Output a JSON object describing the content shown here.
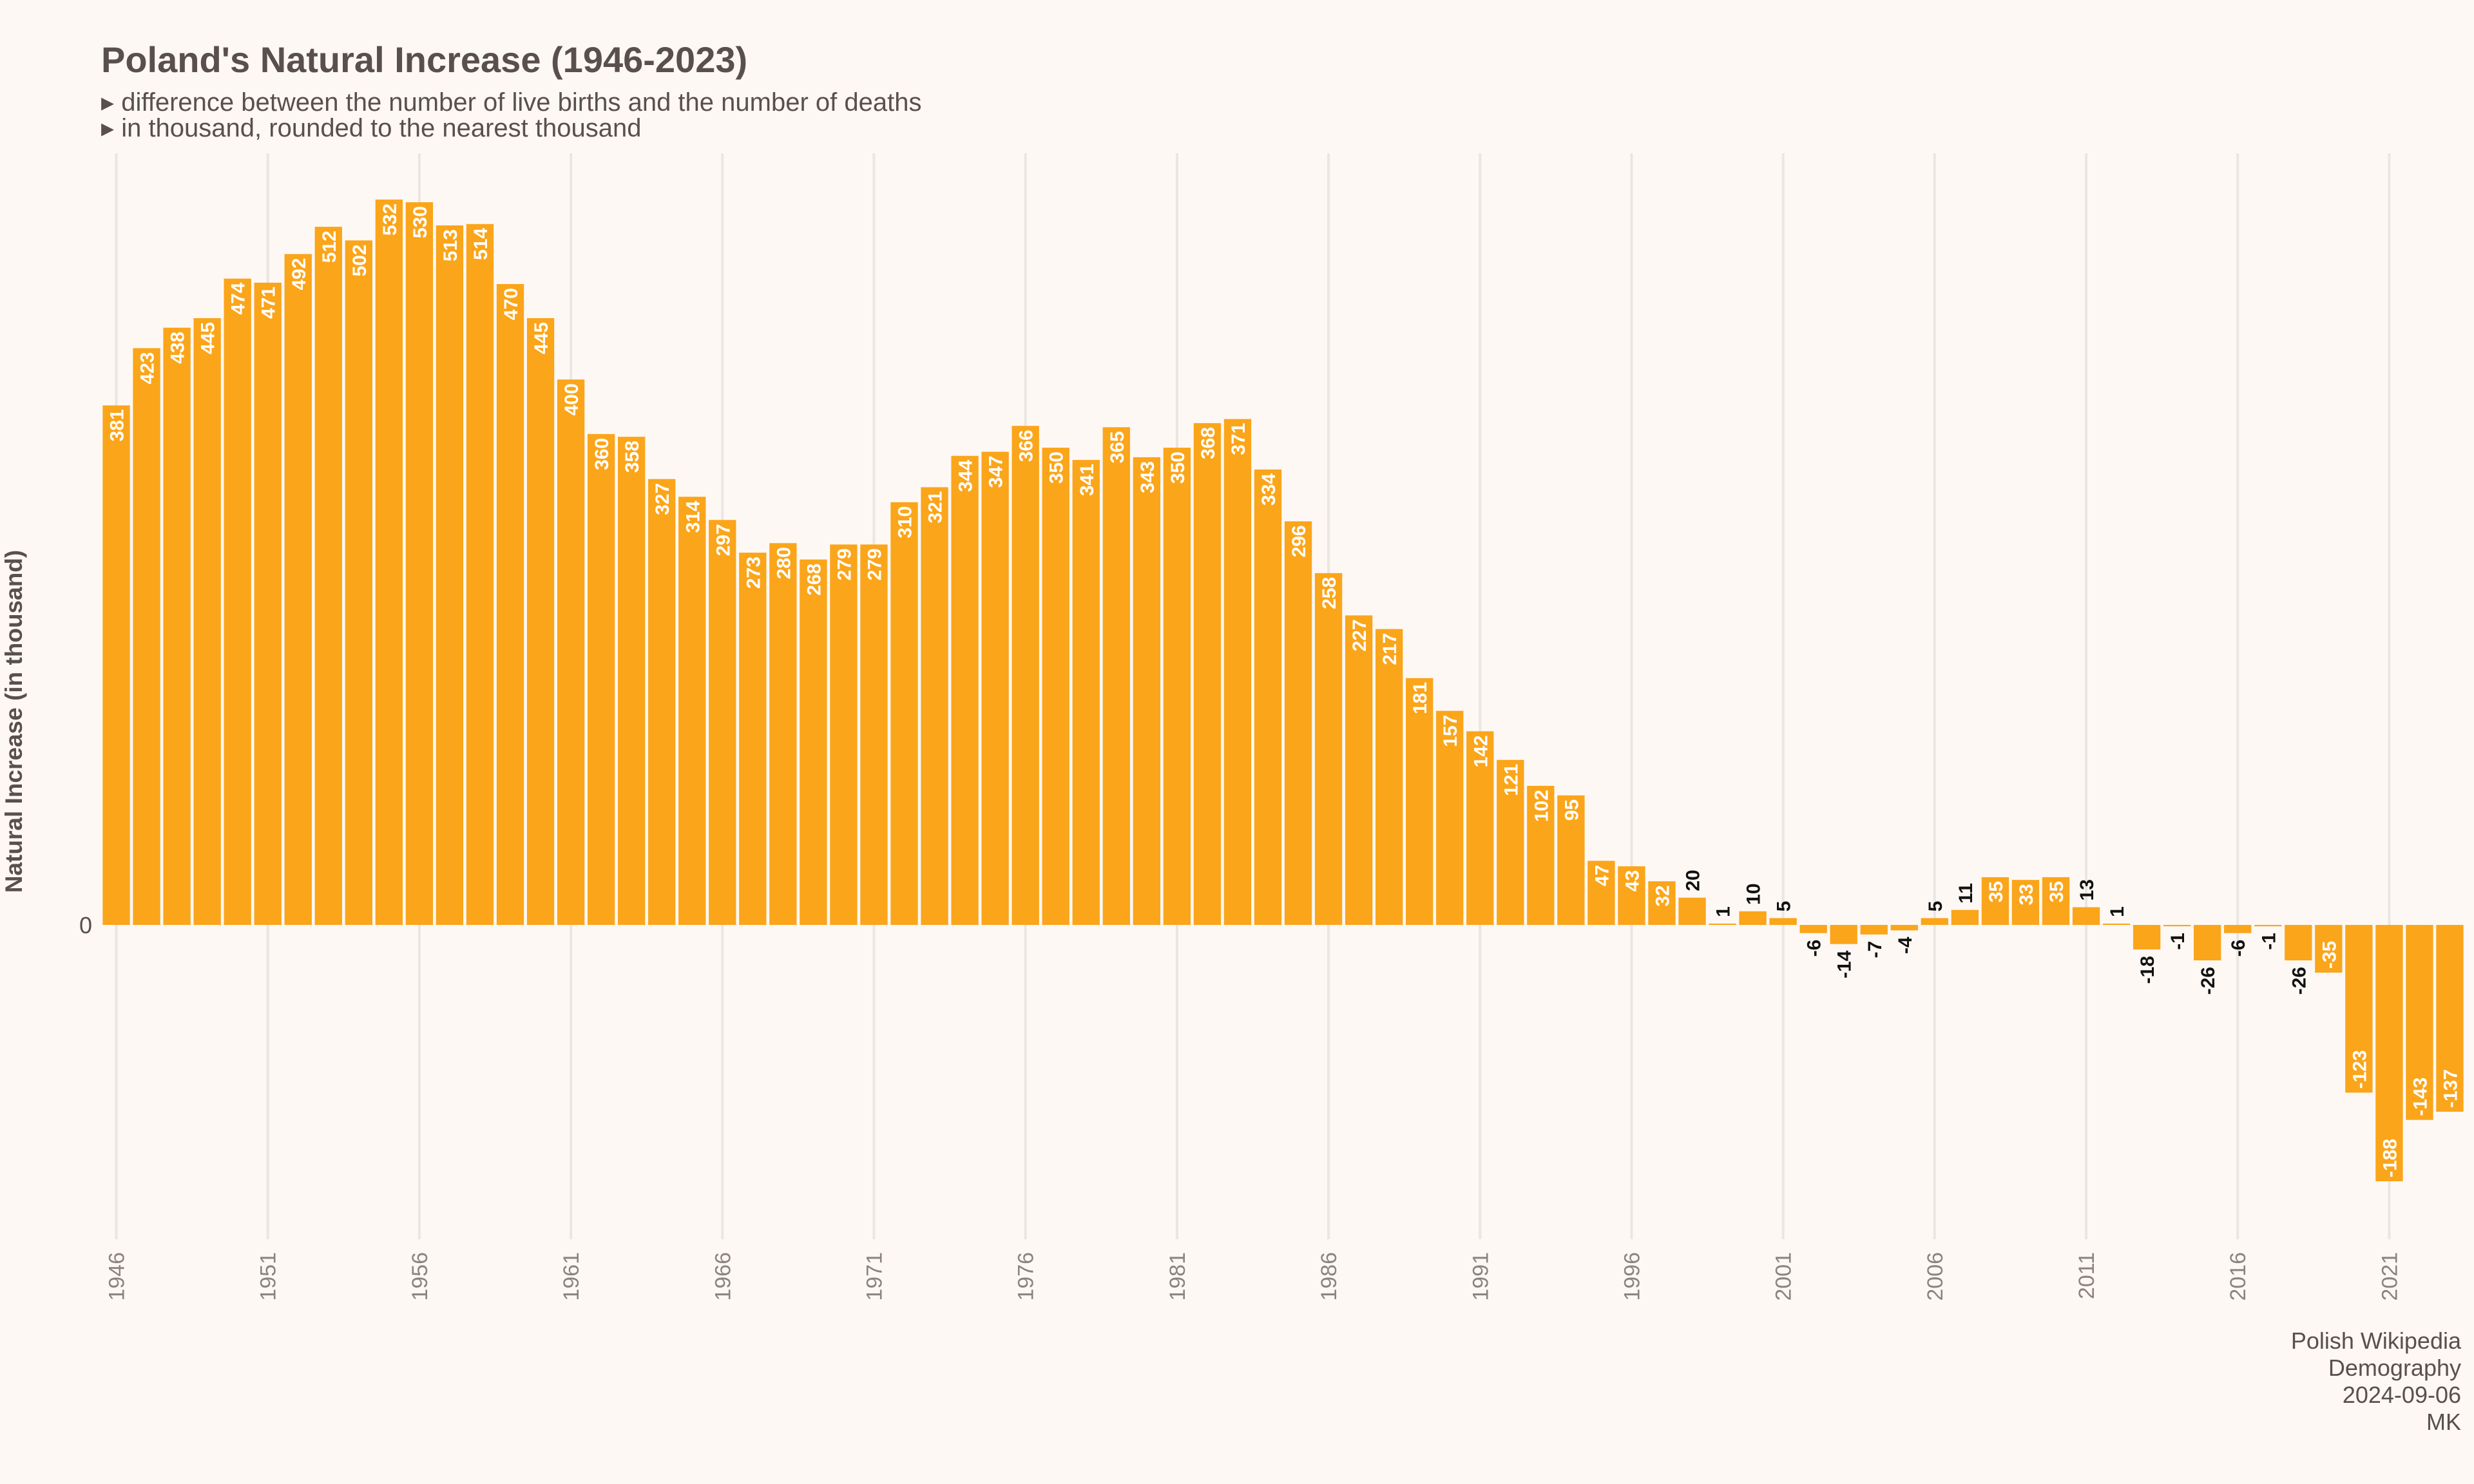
{
  "header": {
    "title": "Poland's Natural Increase (1946-2023)",
    "subtitle_lines": [
      "▸ difference between the number of live births and the number of deaths",
      "▸ in thousand, rounded to the nearest thousand"
    ]
  },
  "footer": {
    "lines": [
      "Polish Wikipedia",
      "Demography",
      "2024-09-06",
      "MK"
    ]
  },
  "colors": {
    "background": "#fdf8f4",
    "bar": "#fba51a",
    "bar_label_inside": "#ffffff",
    "bar_label_outside": "#111111",
    "grid": "#ebe6e1",
    "title": "#5a504b",
    "tick": "#8a8380"
  },
  "chart_data": {
    "type": "bar",
    "title": "Poland's Natural Increase (1946-2023)",
    "ylabel": "Natural Increase (in thousand)",
    "xlabel": "",
    "x": [
      1946,
      1947,
      1948,
      1949,
      1950,
      1951,
      1952,
      1953,
      1954,
      1955,
      1956,
      1957,
      1958,
      1959,
      1960,
      1961,
      1962,
      1963,
      1964,
      1965,
      1966,
      1967,
      1968,
      1969,
      1970,
      1971,
      1972,
      1973,
      1974,
      1975,
      1976,
      1977,
      1978,
      1979,
      1980,
      1981,
      1982,
      1983,
      1984,
      1985,
      1986,
      1987,
      1988,
      1989,
      1990,
      1991,
      1992,
      1993,
      1994,
      1995,
      1996,
      1997,
      1998,
      1999,
      2000,
      2001,
      2002,
      2003,
      2004,
      2005,
      2006,
      2007,
      2008,
      2009,
      2010,
      2011,
      2012,
      2013,
      2014,
      2015,
      2016,
      2017,
      2018,
      2019,
      2020,
      2021,
      2022,
      2023
    ],
    "values": [
      381,
      423,
      438,
      445,
      474,
      471,
      492,
      512,
      502,
      532,
      530,
      513,
      514,
      470,
      445,
      400,
      360,
      358,
      327,
      314,
      297,
      273,
      280,
      268,
      279,
      279,
      310,
      321,
      344,
      347,
      366,
      350,
      341,
      365,
      343,
      350,
      368,
      371,
      334,
      296,
      258,
      227,
      217,
      181,
      157,
      142,
      121,
      102,
      95,
      47,
      43,
      32,
      20,
      1,
      10,
      5,
      -6,
      -14,
      -7,
      -4,
      5,
      11,
      35,
      33,
      35,
      13,
      1,
      -18,
      -1,
      -26,
      -6,
      -1,
      -26,
      -35,
      -123,
      -188,
      -143,
      -137
    ],
    "x_ticks": [
      "1946",
      "1951",
      "1956",
      "1961",
      "1966",
      "1971",
      "1976",
      "1981",
      "1986",
      "1991",
      "1996",
      "2001",
      "2006",
      "2011",
      "2016",
      "2021"
    ],
    "y_ticks": [
      "0"
    ],
    "ylim": [
      -225,
      565
    ],
    "grid": "vertical lines at x ticks"
  }
}
